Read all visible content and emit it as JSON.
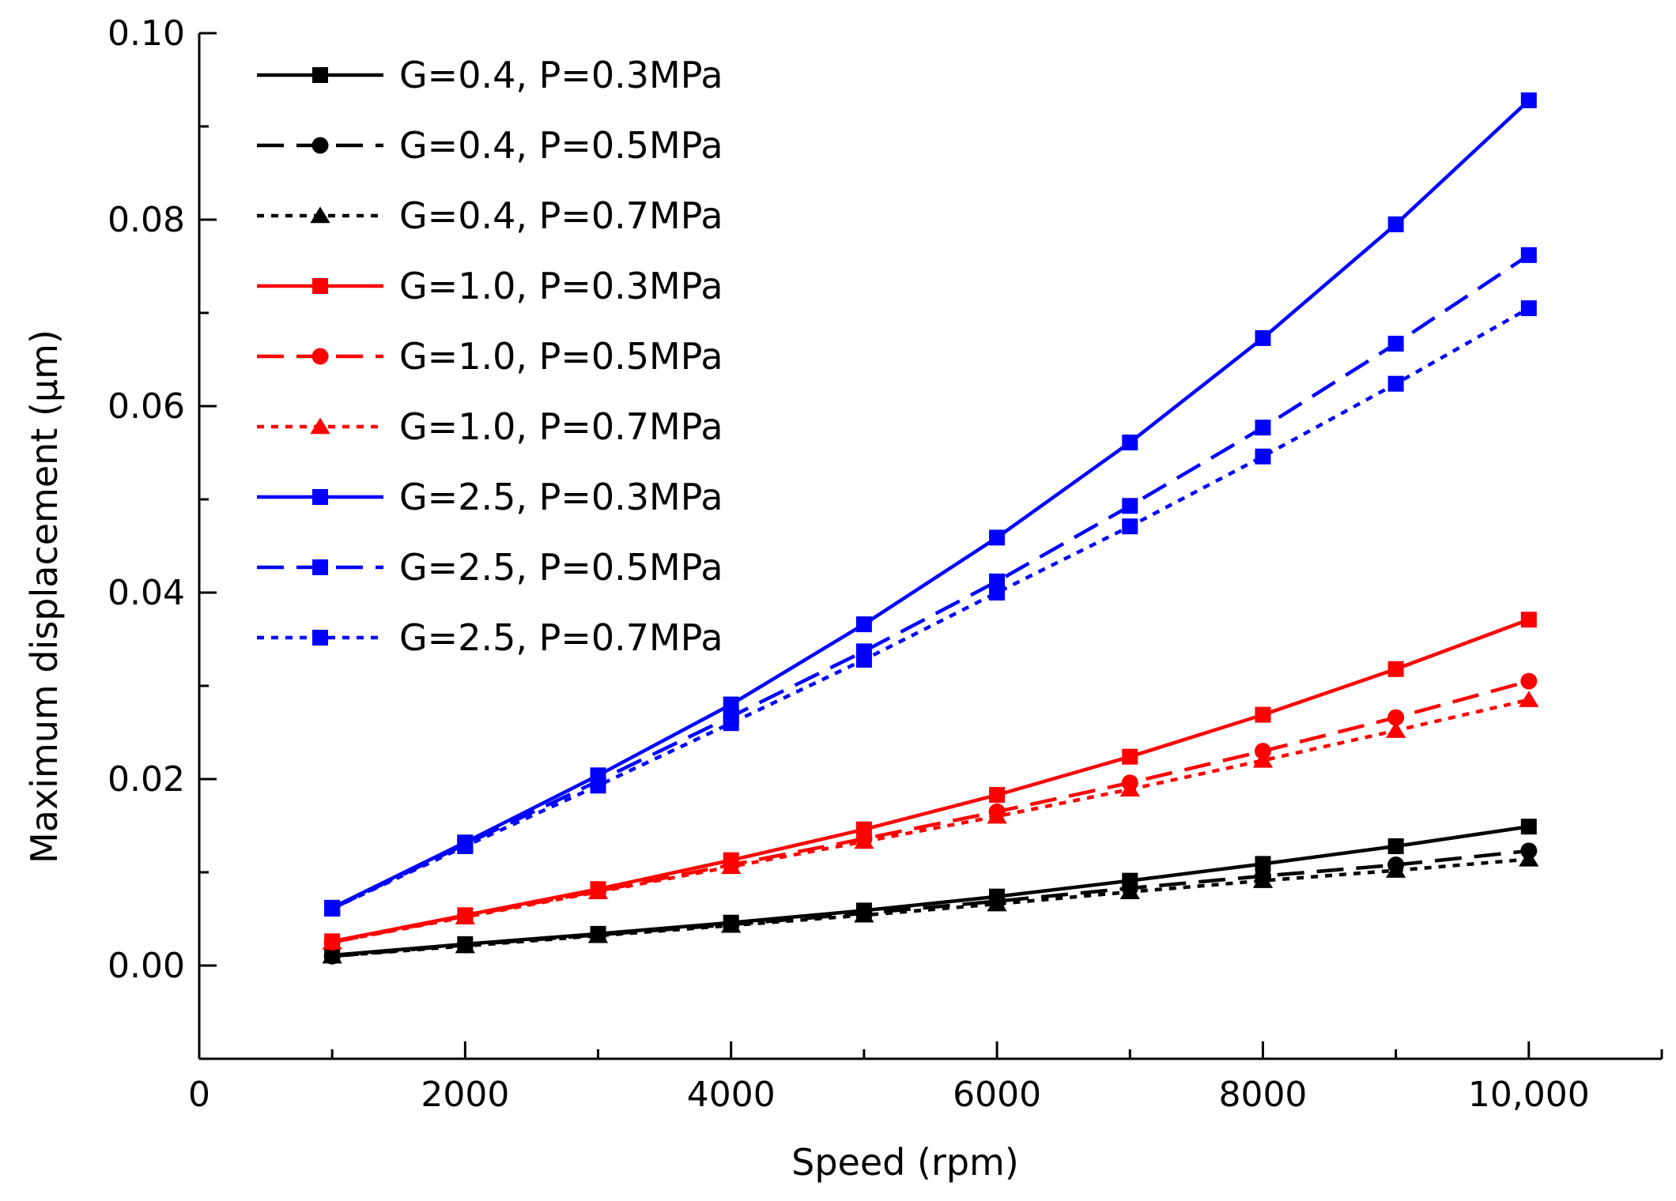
{
  "chart_data": {
    "type": "line",
    "title": "",
    "xlabel": "Speed (rpm)",
    "ylabel": "Maximum displacement (μm)",
    "xlim": [
      0,
      11000
    ],
    "ylim": [
      -0.01,
      0.1
    ],
    "xticks": [
      0,
      2000,
      4000,
      6000,
      8000,
      10000
    ],
    "xtick_labels": [
      "0",
      "2000",
      "4000",
      "6000",
      "8000",
      "10,000"
    ],
    "yticks": [
      0.0,
      0.02,
      0.04,
      0.06,
      0.08,
      0.1
    ],
    "ytick_labels": [
      "0.00",
      "0.02",
      "0.04",
      "0.06",
      "0.08",
      "0.10"
    ],
    "grid": false,
    "legend_position": "top-left",
    "x": [
      1000,
      2000,
      3000,
      4000,
      5000,
      6000,
      7000,
      8000,
      9000,
      10000
    ],
    "series": [
      {
        "name": "G=0.4, P=0.3MPa",
        "color": "#000000",
        "dash": "solid",
        "marker": "square",
        "values": [
          0.0011,
          0.0023,
          0.0034,
          0.0046,
          0.0059,
          0.0074,
          0.0091,
          0.0109,
          0.0128,
          0.0149
        ]
      },
      {
        "name": "G=0.4, P=0.5MPa",
        "color": "#000000",
        "dash": "dash",
        "marker": "circle",
        "values": [
          0.001,
          0.0022,
          0.0033,
          0.0044,
          0.0056,
          0.0069,
          0.0083,
          0.0096,
          0.0108,
          0.0123
        ]
      },
      {
        "name": "G=0.4, P=0.7MPa",
        "color": "#000000",
        "dash": "dot",
        "marker": "triangle",
        "values": [
          0.001,
          0.0021,
          0.0032,
          0.0043,
          0.0054,
          0.0066,
          0.0079,
          0.0091,
          0.0102,
          0.0114
        ]
      },
      {
        "name": "G=1.0, P=0.3MPa",
        "color": "#ff0000",
        "dash": "solid",
        "marker": "square",
        "values": [
          0.0026,
          0.0054,
          0.0082,
          0.0113,
          0.0146,
          0.0183,
          0.0224,
          0.0269,
          0.0318,
          0.0371
        ]
      },
      {
        "name": "G=1.0, P=0.5MPa",
        "color": "#ff0000",
        "dash": "dash",
        "marker": "circle",
        "values": [
          0.0025,
          0.0053,
          0.008,
          0.0108,
          0.0136,
          0.0165,
          0.0196,
          0.023,
          0.0266,
          0.0305
        ]
      },
      {
        "name": "G=1.0, P=0.7MPa",
        "color": "#ff0000",
        "dash": "dot",
        "marker": "triangle",
        "values": [
          0.0025,
          0.0052,
          0.0079,
          0.0106,
          0.0133,
          0.016,
          0.0189,
          0.022,
          0.0252,
          0.0285
        ]
      },
      {
        "name": "G=2.5, P=0.3MPa",
        "color": "#0000ff",
        "dash": "solid",
        "marker": "square",
        "values": [
          0.0062,
          0.0132,
          0.0204,
          0.028,
          0.0366,
          0.0459,
          0.0561,
          0.0673,
          0.0795,
          0.0928
        ]
      },
      {
        "name": "G=2.5, P=0.5MPa",
        "color": "#0000ff",
        "dash": "dash",
        "marker": "square",
        "values": [
          0.0061,
          0.013,
          0.0198,
          0.0267,
          0.0337,
          0.0412,
          0.0493,
          0.0577,
          0.0667,
          0.0762
        ]
      },
      {
        "name": "G=2.5, P=0.7MPa",
        "color": "#0000ff",
        "dash": "dot",
        "marker": "square",
        "values": [
          0.0061,
          0.0128,
          0.0193,
          0.026,
          0.0328,
          0.04,
          0.0471,
          0.0546,
          0.0624,
          0.0705
        ]
      }
    ]
  }
}
